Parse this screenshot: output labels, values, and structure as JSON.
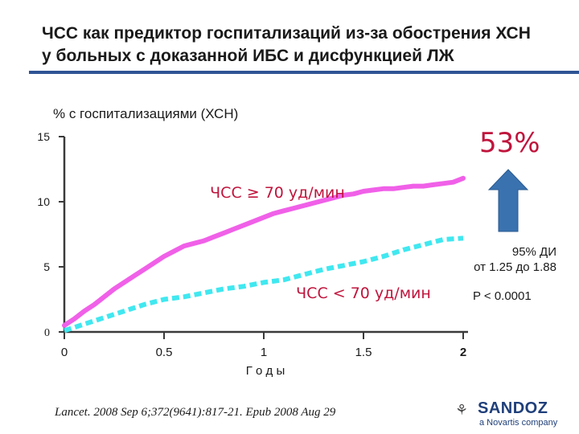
{
  "slide": {
    "title_line1": "ЧСС как предиктор госпитализаций из-за  обострения ХСН",
    "title_line2": "у больных с  доказанной  ИБС  и  дисфункцией ЛЖ",
    "citation": "Lancet. 2008 Sep 6;372(9641):817-21. Epub 2008 Aug 29"
  },
  "annotations": {
    "big_percent": "53%",
    "ci_line1": "95% ДИ",
    "ci_line2": "от 1.25  до 1.88",
    "p_value": "P < 0.0001",
    "arrow_icon": "up-arrow-icon",
    "arrow_color": "#3a72b0"
  },
  "logo": {
    "icon": "sandoz-logo-icon",
    "name": "SANDOZ",
    "subtitle": "a Novartis company"
  },
  "chart_data": {
    "type": "line",
    "title": "",
    "xlabel": "Г о д ы",
    "ylabel": "%  с  госпитализациями (ХСН)",
    "xlim": [
      0,
      2
    ],
    "ylim": [
      0,
      15
    ],
    "x_ticks": [
      0,
      0.5,
      1,
      1.5,
      2
    ],
    "x_tick_labels": [
      "0",
      "0.5",
      "1",
      "1.5",
      "2"
    ],
    "y_ticks": [
      0,
      5,
      10,
      15
    ],
    "y_tick_labels": [
      "0",
      "5",
      "10",
      "15"
    ],
    "grid": false,
    "series": [
      {
        "name": "ЧСС ≥ 70 уд/мин",
        "color": "#f060e8",
        "style": "solid",
        "x": [
          0,
          0.05,
          0.1,
          0.15,
          0.2,
          0.25,
          0.3,
          0.35,
          0.4,
          0.45,
          0.5,
          0.55,
          0.6,
          0.65,
          0.7,
          0.75,
          0.8,
          0.85,
          0.9,
          0.95,
          1.0,
          1.05,
          1.1,
          1.15,
          1.2,
          1.25,
          1.3,
          1.35,
          1.4,
          1.45,
          1.5,
          1.55,
          1.6,
          1.65,
          1.7,
          1.75,
          1.8,
          1.85,
          1.9,
          1.95,
          2.0
        ],
        "y": [
          0.5,
          1.0,
          1.6,
          2.1,
          2.7,
          3.3,
          3.8,
          4.3,
          4.8,
          5.3,
          5.8,
          6.2,
          6.6,
          6.8,
          7.0,
          7.3,
          7.6,
          7.9,
          8.2,
          8.5,
          8.8,
          9.1,
          9.3,
          9.5,
          9.7,
          9.9,
          10.1,
          10.3,
          10.5,
          10.6,
          10.8,
          10.9,
          11.0,
          11.0,
          11.1,
          11.2,
          11.2,
          11.3,
          11.4,
          11.5,
          11.8
        ]
      },
      {
        "name": "ЧСС < 70 уд/мин",
        "color": "#40e8f0",
        "style": "dashed",
        "x": [
          0,
          0.1,
          0.2,
          0.3,
          0.4,
          0.5,
          0.6,
          0.7,
          0.8,
          0.9,
          1.0,
          1.1,
          1.2,
          1.3,
          1.4,
          1.5,
          1.6,
          1.7,
          1.8,
          1.9,
          2.0
        ],
        "y": [
          0.1,
          0.6,
          1.1,
          1.6,
          2.1,
          2.5,
          2.7,
          3.0,
          3.3,
          3.5,
          3.8,
          4.0,
          4.4,
          4.8,
          5.1,
          5.4,
          5.8,
          6.3,
          6.7,
          7.1,
          7.2
        ]
      }
    ]
  }
}
